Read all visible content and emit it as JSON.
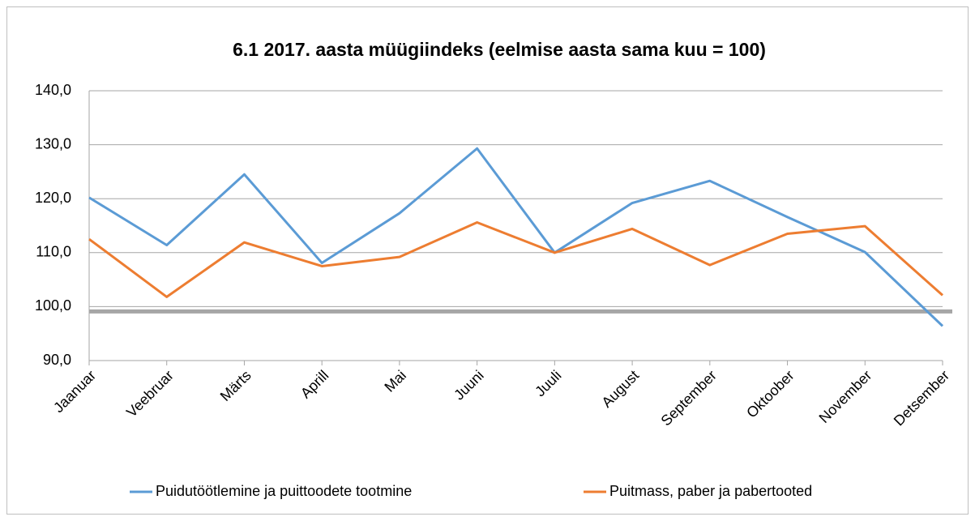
{
  "chart_data": {
    "type": "line",
    "title": "6.1 2017. aasta müügiindeks (eelmise aasta sama kuu = 100)",
    "categories": [
      "Jaanuar",
      "Veebruar",
      "Märts",
      "Aprill",
      "Mai",
      "Juuni",
      "Juuli",
      "August",
      "September",
      "Oktoober",
      "November",
      "Detsember"
    ],
    "series": [
      {
        "name": "Puidutöötlemine ja puittoodete tootmine",
        "color": "#5b9bd5",
        "values": [
          120.2,
          111.4,
          124.5,
          108.1,
          117.3,
          129.3,
          110.0,
          119.2,
          123.3,
          116.6,
          110.1,
          96.4
        ]
      },
      {
        "name": "Puitmass, paber ja pabertooted",
        "color": "#ed7d31",
        "values": [
          112.5,
          101.8,
          111.9,
          107.5,
          109.2,
          115.6,
          110.0,
          114.4,
          107.7,
          113.5,
          114.9,
          102.1
        ]
      }
    ],
    "ylim": [
      90,
      140
    ],
    "yticks": [
      {
        "value": 90,
        "label": "90,0"
      },
      {
        "value": 100,
        "label": "100,0"
      },
      {
        "value": 110,
        "label": "110,0"
      },
      {
        "value": 120,
        "label": "120,0"
      },
      {
        "value": 130,
        "label": "130,0"
      },
      {
        "value": 140,
        "label": "140,0"
      }
    ],
    "grid": true,
    "legend": "bottom",
    "reference_line": {
      "value": 99.1,
      "color": "#a6a6a6"
    }
  }
}
